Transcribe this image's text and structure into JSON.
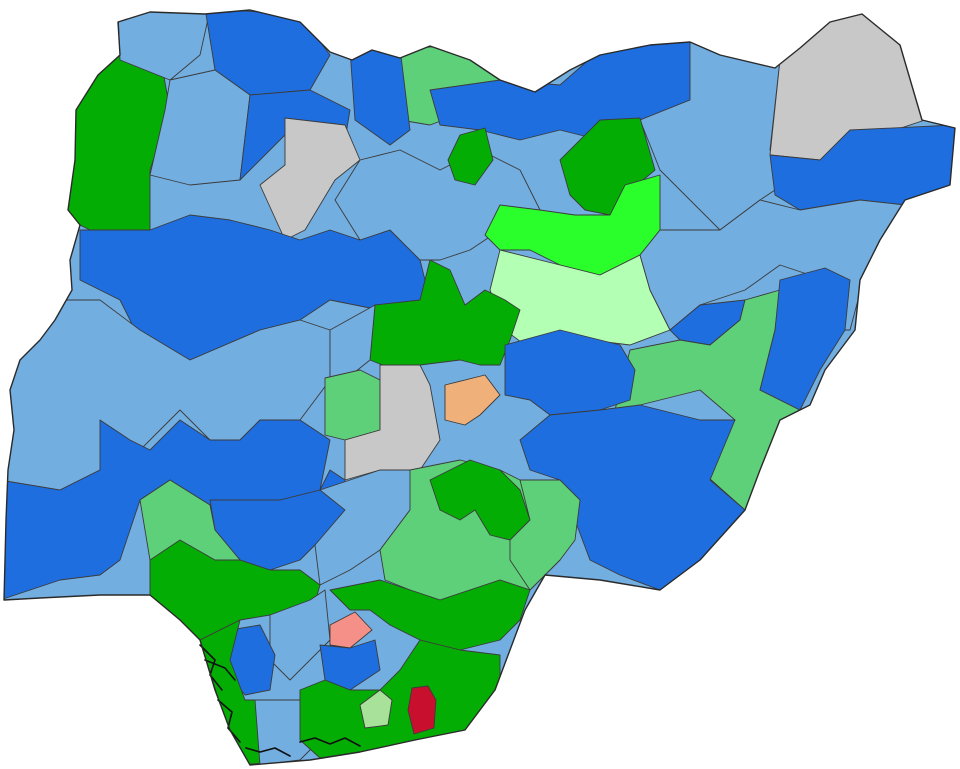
{
  "map": {
    "palette": {
      "dark_blue": "#1f6ee0",
      "light_blue": "#72aee0",
      "dark_green": "#04ad04",
      "mid_green": "#5fd07a",
      "bright_green": "#2bff2b",
      "pale_green": "#b3ffb3",
      "sage_green": "#a8e29a",
      "gray": "#c8c8c8",
      "orange": "#f0b07a",
      "salmon": "#f59088",
      "red": "#c8102e",
      "border": "#3b3b3b"
    },
    "regions": [
      {
        "name": "nw-green-block",
        "fill": "dark_green"
      },
      {
        "name": "n-top-lightblue-1",
        "fill": "light_blue"
      },
      {
        "name": "n-top-darkblue-1",
        "fill": "dark_blue"
      },
      {
        "name": "n-top-lightblue-2",
        "fill": "light_blue"
      },
      {
        "name": "n-top-darkblue-2",
        "fill": "dark_blue"
      },
      {
        "name": "n-top-midgreen",
        "fill": "mid_green"
      },
      {
        "name": "n-top-darkblue-3",
        "fill": "dark_blue"
      },
      {
        "name": "n-top-darkblue-4",
        "fill": "dark_blue"
      },
      {
        "name": "ne-lightblue-1",
        "fill": "light_blue"
      },
      {
        "name": "ne-gray",
        "fill": "gray"
      },
      {
        "name": "ne-darkblue-band",
        "fill": "dark_blue"
      },
      {
        "name": "nw-gray",
        "fill": "gray"
      },
      {
        "name": "nw-darkblue-1",
        "fill": "dark_blue"
      },
      {
        "name": "nw-lightblue-1",
        "fill": "light_blue"
      },
      {
        "name": "n-green-small",
        "fill": "dark_green"
      },
      {
        "name": "n-green-1",
        "fill": "dark_green"
      },
      {
        "name": "n-brightgreen",
        "fill": "bright_green"
      },
      {
        "name": "c-palegreen",
        "fill": "pale_green"
      },
      {
        "name": "ne-lightblue-2",
        "fill": "light_blue"
      },
      {
        "name": "e-darkblue-1",
        "fill": "dark_blue"
      },
      {
        "name": "w-darkblue-1",
        "fill": "dark_blue"
      },
      {
        "name": "w-lightblue-1",
        "fill": "light_blue"
      },
      {
        "name": "c-darkblue-1",
        "fill": "dark_blue"
      },
      {
        "name": "c-green-1",
        "fill": "dark_green"
      },
      {
        "name": "c-lightblue-1",
        "fill": "light_blue"
      },
      {
        "name": "c-midgreen-1",
        "fill": "mid_green"
      },
      {
        "name": "c-gray-1",
        "fill": "gray"
      },
      {
        "name": "c-orange",
        "fill": "orange"
      },
      {
        "name": "e-midgreen-1",
        "fill": "mid_green"
      },
      {
        "name": "e-darkblue-2",
        "fill": "dark_blue"
      },
      {
        "name": "e-darkblue-3",
        "fill": "dark_blue"
      },
      {
        "name": "sw-darkblue-1",
        "fill": "dark_blue"
      },
      {
        "name": "sw-lightblue-1",
        "fill": "light_blue"
      },
      {
        "name": "s-midgreen-1",
        "fill": "mid_green"
      },
      {
        "name": "s-green-1",
        "fill": "dark_green"
      },
      {
        "name": "s-lightblue-1",
        "fill": "light_blue"
      },
      {
        "name": "s-green-2",
        "fill": "dark_green"
      },
      {
        "name": "s-midgreen-2",
        "fill": "mid_green"
      },
      {
        "name": "se-midgreen-1",
        "fill": "mid_green"
      },
      {
        "name": "s-salmon",
        "fill": "salmon"
      },
      {
        "name": "s-darkblue-1",
        "fill": "dark_blue"
      },
      {
        "name": "s-green-3",
        "fill": "dark_green"
      },
      {
        "name": "s-lightblue-2",
        "fill": "light_blue"
      },
      {
        "name": "s-darkblue-2",
        "fill": "dark_blue"
      },
      {
        "name": "s-sagegreen",
        "fill": "sage_green"
      },
      {
        "name": "s-red",
        "fill": "red"
      },
      {
        "name": "se-green-1",
        "fill": "dark_green"
      }
    ]
  }
}
